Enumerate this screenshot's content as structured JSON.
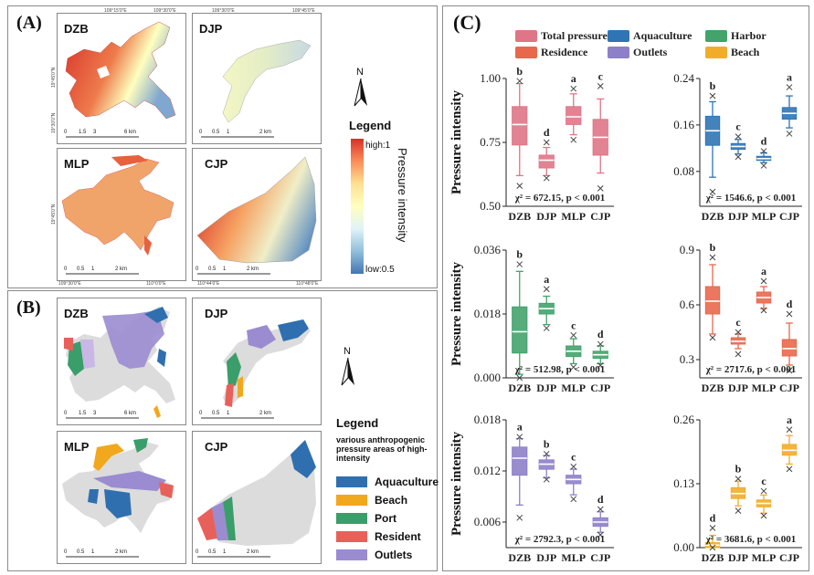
{
  "panels": {
    "a_label": "(A)",
    "b_label": "(B)",
    "c_label": "(C)"
  },
  "panel_a": {
    "maps": [
      {
        "name": "DZB",
        "scale": [
          "0",
          "1.5",
          "3",
          "6 km"
        ],
        "top_coords": [
          "109°15'0\"E",
          "109°30'0\"E"
        ],
        "left_coords": [
          "19°45'0\"N",
          "19°30'0\"N"
        ],
        "bottom_coords": []
      },
      {
        "name": "DJP",
        "scale": [
          "0",
          "0.5",
          "1",
          "2 km"
        ],
        "top_coords": [
          "109°30'0\"E",
          "109°45'0\"E"
        ],
        "left_coords": [],
        "bottom_coords": []
      },
      {
        "name": "MLP",
        "scale": [
          "0",
          "0.5",
          "1",
          "2 km"
        ],
        "top_coords": [],
        "left_coords": [
          "19°45'0\"N"
        ],
        "bottom_coords": [
          "109°30'0\"E",
          "110°0'0\"E"
        ]
      },
      {
        "name": "CJP",
        "scale": [
          "0",
          "0.5",
          "1",
          "2 km"
        ],
        "top_coords": [],
        "left_coords": [],
        "bottom_coords": [
          "110°44'0\"E",
          "110°48'0\"E"
        ]
      }
    ],
    "north": "N",
    "legend_title": "Legend",
    "colorbar_high": "high:1",
    "colorbar_low": "low:0.5",
    "colorbar_label": "Pressure intensity",
    "colors": {
      "high": "#d73027",
      "mid": "#ffffbf",
      "low": "#4575b4"
    }
  },
  "panel_b": {
    "maps": [
      {
        "name": "DZB",
        "scale": [
          "0",
          "1.5",
          "3",
          "6 km"
        ]
      },
      {
        "name": "DJP",
        "scale": [
          "0",
          "0.5",
          "1",
          "2 km"
        ]
      },
      {
        "name": "MLP",
        "scale": [
          "0",
          "0.5",
          "1",
          "2 km"
        ]
      },
      {
        "name": "CJP",
        "scale": [
          "0",
          "0.5",
          "1",
          "2 km"
        ]
      }
    ],
    "north": "N",
    "legend_title": "Legend",
    "legend_sub": "various anthropogenic pressure areas of high- intensity",
    "legend_items": [
      {
        "label": "Aquaculture",
        "color": "#2f6fb0"
      },
      {
        "label": "Beach",
        "color": "#f2a81d"
      },
      {
        "label": "Port",
        "color": "#3a9e6a"
      },
      {
        "label": "Resident",
        "color": "#e8605a"
      },
      {
        "label": "Outlets",
        "color": "#9b8bd0"
      }
    ]
  },
  "panel_c_legend": [
    {
      "label": "Total pressure",
      "color": "#df7587"
    },
    {
      "label": "Aquaculture",
      "color": "#2f74b5"
    },
    {
      "label": "Harbor",
      "color": "#43a36b"
    },
    {
      "label": "Residence",
      "color": "#e8684c"
    },
    {
      "label": "Outlets",
      "color": "#8e80c8"
    },
    {
      "label": "Beach",
      "color": "#f1ad2a"
    }
  ],
  "chart_data": [
    {
      "type": "box",
      "title": "",
      "ylabel": "Pressure intensity",
      "color": "#df7587",
      "categories": [
        "DZB",
        "DJP",
        "MLP",
        "CJP"
      ],
      "ylim": [
        0.5,
        1.0
      ],
      "yticks": [
        "0.50",
        "0.75",
        "1.00"
      ],
      "annotation": "χ² = 672.15, p < 0.001",
      "letters": [
        "b",
        "d",
        "a",
        "c"
      ],
      "boxes": [
        {
          "min": 0.62,
          "q1": 0.74,
          "median": 0.82,
          "q3": 0.89,
          "max": 0.98,
          "lo_x": 0.58,
          "hi_x": 0.99
        },
        {
          "min": 0.62,
          "q1": 0.65,
          "median": 0.68,
          "q3": 0.7,
          "max": 0.73,
          "lo_x": 0.61,
          "hi_x": 0.75
        },
        {
          "min": 0.78,
          "q1": 0.82,
          "median": 0.85,
          "q3": 0.89,
          "max": 0.94,
          "lo_x": 0.76,
          "hi_x": 0.96
        },
        {
          "min": 0.63,
          "q1": 0.7,
          "median": 0.77,
          "q3": 0.84,
          "max": 0.92,
          "lo_x": 0.57,
          "hi_x": 0.97
        }
      ]
    },
    {
      "type": "box",
      "title": "",
      "ylabel": "",
      "color": "#2f74b5",
      "categories": [
        "DZB",
        "DJP",
        "MLP",
        "CJP"
      ],
      "ylim": [
        0.02,
        0.24
      ],
      "yticks": [
        "0.08",
        "0.16",
        "0.24"
      ],
      "annotation": "χ² = 1546.6, p < 0.001",
      "letters": [
        "b",
        "c",
        "d",
        "a"
      ],
      "boxes": [
        {
          "min": 0.07,
          "q1": 0.125,
          "median": 0.15,
          "q3": 0.175,
          "max": 0.2,
          "lo_x": 0.045,
          "hi_x": 0.21
        },
        {
          "min": 0.11,
          "q1": 0.118,
          "median": 0.123,
          "q3": 0.128,
          "max": 0.135,
          "lo_x": 0.105,
          "hi_x": 0.14
        },
        {
          "min": 0.095,
          "q1": 0.099,
          "median": 0.102,
          "q3": 0.106,
          "max": 0.112,
          "lo_x": 0.09,
          "hi_x": 0.115
        },
        {
          "min": 0.155,
          "q1": 0.17,
          "median": 0.18,
          "q3": 0.19,
          "max": 0.21,
          "lo_x": 0.145,
          "hi_x": 0.225
        }
      ]
    },
    {
      "type": "box",
      "title": "",
      "ylabel": "Pressure intensity",
      "color": "#43a36b",
      "categories": [
        "DZB",
        "DJP",
        "MLP",
        "CJP"
      ],
      "ylim": [
        0.0,
        0.036
      ],
      "yticks": [
        "0.000",
        "0.018",
        "0.036"
      ],
      "annotation": "χ² = 512.98, p < 0.001",
      "letters": [
        "b",
        "a",
        "c",
        "d"
      ],
      "boxes": [
        {
          "min": 0.001,
          "q1": 0.007,
          "median": 0.013,
          "q3": 0.02,
          "max": 0.03,
          "lo_x": 0.0,
          "hi_x": 0.032
        },
        {
          "min": 0.015,
          "q1": 0.018,
          "median": 0.0195,
          "q3": 0.021,
          "max": 0.023,
          "lo_x": 0.014,
          "hi_x": 0.025
        },
        {
          "min": 0.004,
          "q1": 0.006,
          "median": 0.0075,
          "q3": 0.009,
          "max": 0.011,
          "lo_x": 0.003,
          "hi_x": 0.012
        },
        {
          "min": 0.004,
          "q1": 0.0055,
          "median": 0.0065,
          "q3": 0.0075,
          "max": 0.009,
          "lo_x": 0.0035,
          "hi_x": 0.0095
        }
      ]
    },
    {
      "type": "box",
      "title": "",
      "ylabel": "",
      "color": "#e8684c",
      "categories": [
        "DZB",
        "DJP",
        "MLP",
        "CJP"
      ],
      "ylim": [
        0.2,
        0.9
      ],
      "yticks": [
        "0.3",
        "0.6",
        "0.9"
      ],
      "annotation": "χ² = 2717.6, p < 0.001",
      "letters": [
        "b",
        "c",
        "a",
        "d"
      ],
      "boxes": [
        {
          "min": 0.44,
          "q1": 0.55,
          "median": 0.62,
          "q3": 0.7,
          "max": 0.82,
          "lo_x": 0.42,
          "hi_x": 0.86
        },
        {
          "min": 0.36,
          "q1": 0.385,
          "median": 0.4,
          "q3": 0.42,
          "max": 0.44,
          "lo_x": 0.33,
          "hi_x": 0.45
        },
        {
          "min": 0.58,
          "q1": 0.61,
          "median": 0.64,
          "q3": 0.67,
          "max": 0.7,
          "lo_x": 0.57,
          "hi_x": 0.73
        },
        {
          "min": 0.27,
          "q1": 0.32,
          "median": 0.36,
          "q3": 0.41,
          "max": 0.5,
          "lo_x": 0.24,
          "hi_x": 0.55
        }
      ]
    },
    {
      "type": "box",
      "title": "",
      "ylabel": "Pressure intensity",
      "color": "#8e80c8",
      "categories": [
        "DZB",
        "DJP",
        "MLP",
        "CJP"
      ],
      "ylim": [
        0.003,
        0.018
      ],
      "yticks": [
        "0.006",
        "0.012",
        "0.018"
      ],
      "annotation": "χ² = 2792.3, p < 0.001",
      "letters": [
        "a",
        "b",
        "c",
        "d"
      ],
      "boxes": [
        {
          "min": 0.008,
          "q1": 0.0115,
          "median": 0.0135,
          "q3": 0.0148,
          "max": 0.0158,
          "lo_x": 0.0065,
          "hi_x": 0.016
        },
        {
          "min": 0.0112,
          "q1": 0.0122,
          "median": 0.0128,
          "q3": 0.0133,
          "max": 0.0138,
          "lo_x": 0.011,
          "hi_x": 0.014
        },
        {
          "min": 0.0092,
          "q1": 0.0105,
          "median": 0.011,
          "q3": 0.0115,
          "max": 0.0122,
          "lo_x": 0.0087,
          "hi_x": 0.0125
        },
        {
          "min": 0.0048,
          "q1": 0.0055,
          "median": 0.006,
          "q3": 0.0065,
          "max": 0.0072,
          "lo_x": 0.0045,
          "hi_x": 0.0075
        }
      ]
    },
    {
      "type": "box",
      "title": "",
      "ylabel": "",
      "color": "#f1ad2a",
      "categories": [
        "DZB",
        "DJP",
        "MLP",
        "CJP"
      ],
      "ylim": [
        0.0,
        0.26
      ],
      "yticks": [
        "0.00",
        "0.13",
        "0.26"
      ],
      "annotation": "χ² = 3681.6, p < 0.001",
      "letters": [
        "d",
        "b",
        "c",
        "a"
      ],
      "boxes": [
        {
          "min": 0.0,
          "q1": 0.0,
          "median": 0.005,
          "q3": 0.01,
          "max": 0.025,
          "lo_x": 0.0,
          "hi_x": 0.04
        },
        {
          "min": 0.085,
          "q1": 0.1,
          "median": 0.11,
          "q3": 0.122,
          "max": 0.135,
          "lo_x": 0.075,
          "hi_x": 0.14
        },
        {
          "min": 0.07,
          "q1": 0.083,
          "median": 0.09,
          "q3": 0.097,
          "max": 0.107,
          "lo_x": 0.065,
          "hi_x": 0.115
        },
        {
          "min": 0.17,
          "q1": 0.188,
          "median": 0.198,
          "q3": 0.21,
          "max": 0.228,
          "lo_x": 0.16,
          "hi_x": 0.24
        }
      ]
    }
  ]
}
